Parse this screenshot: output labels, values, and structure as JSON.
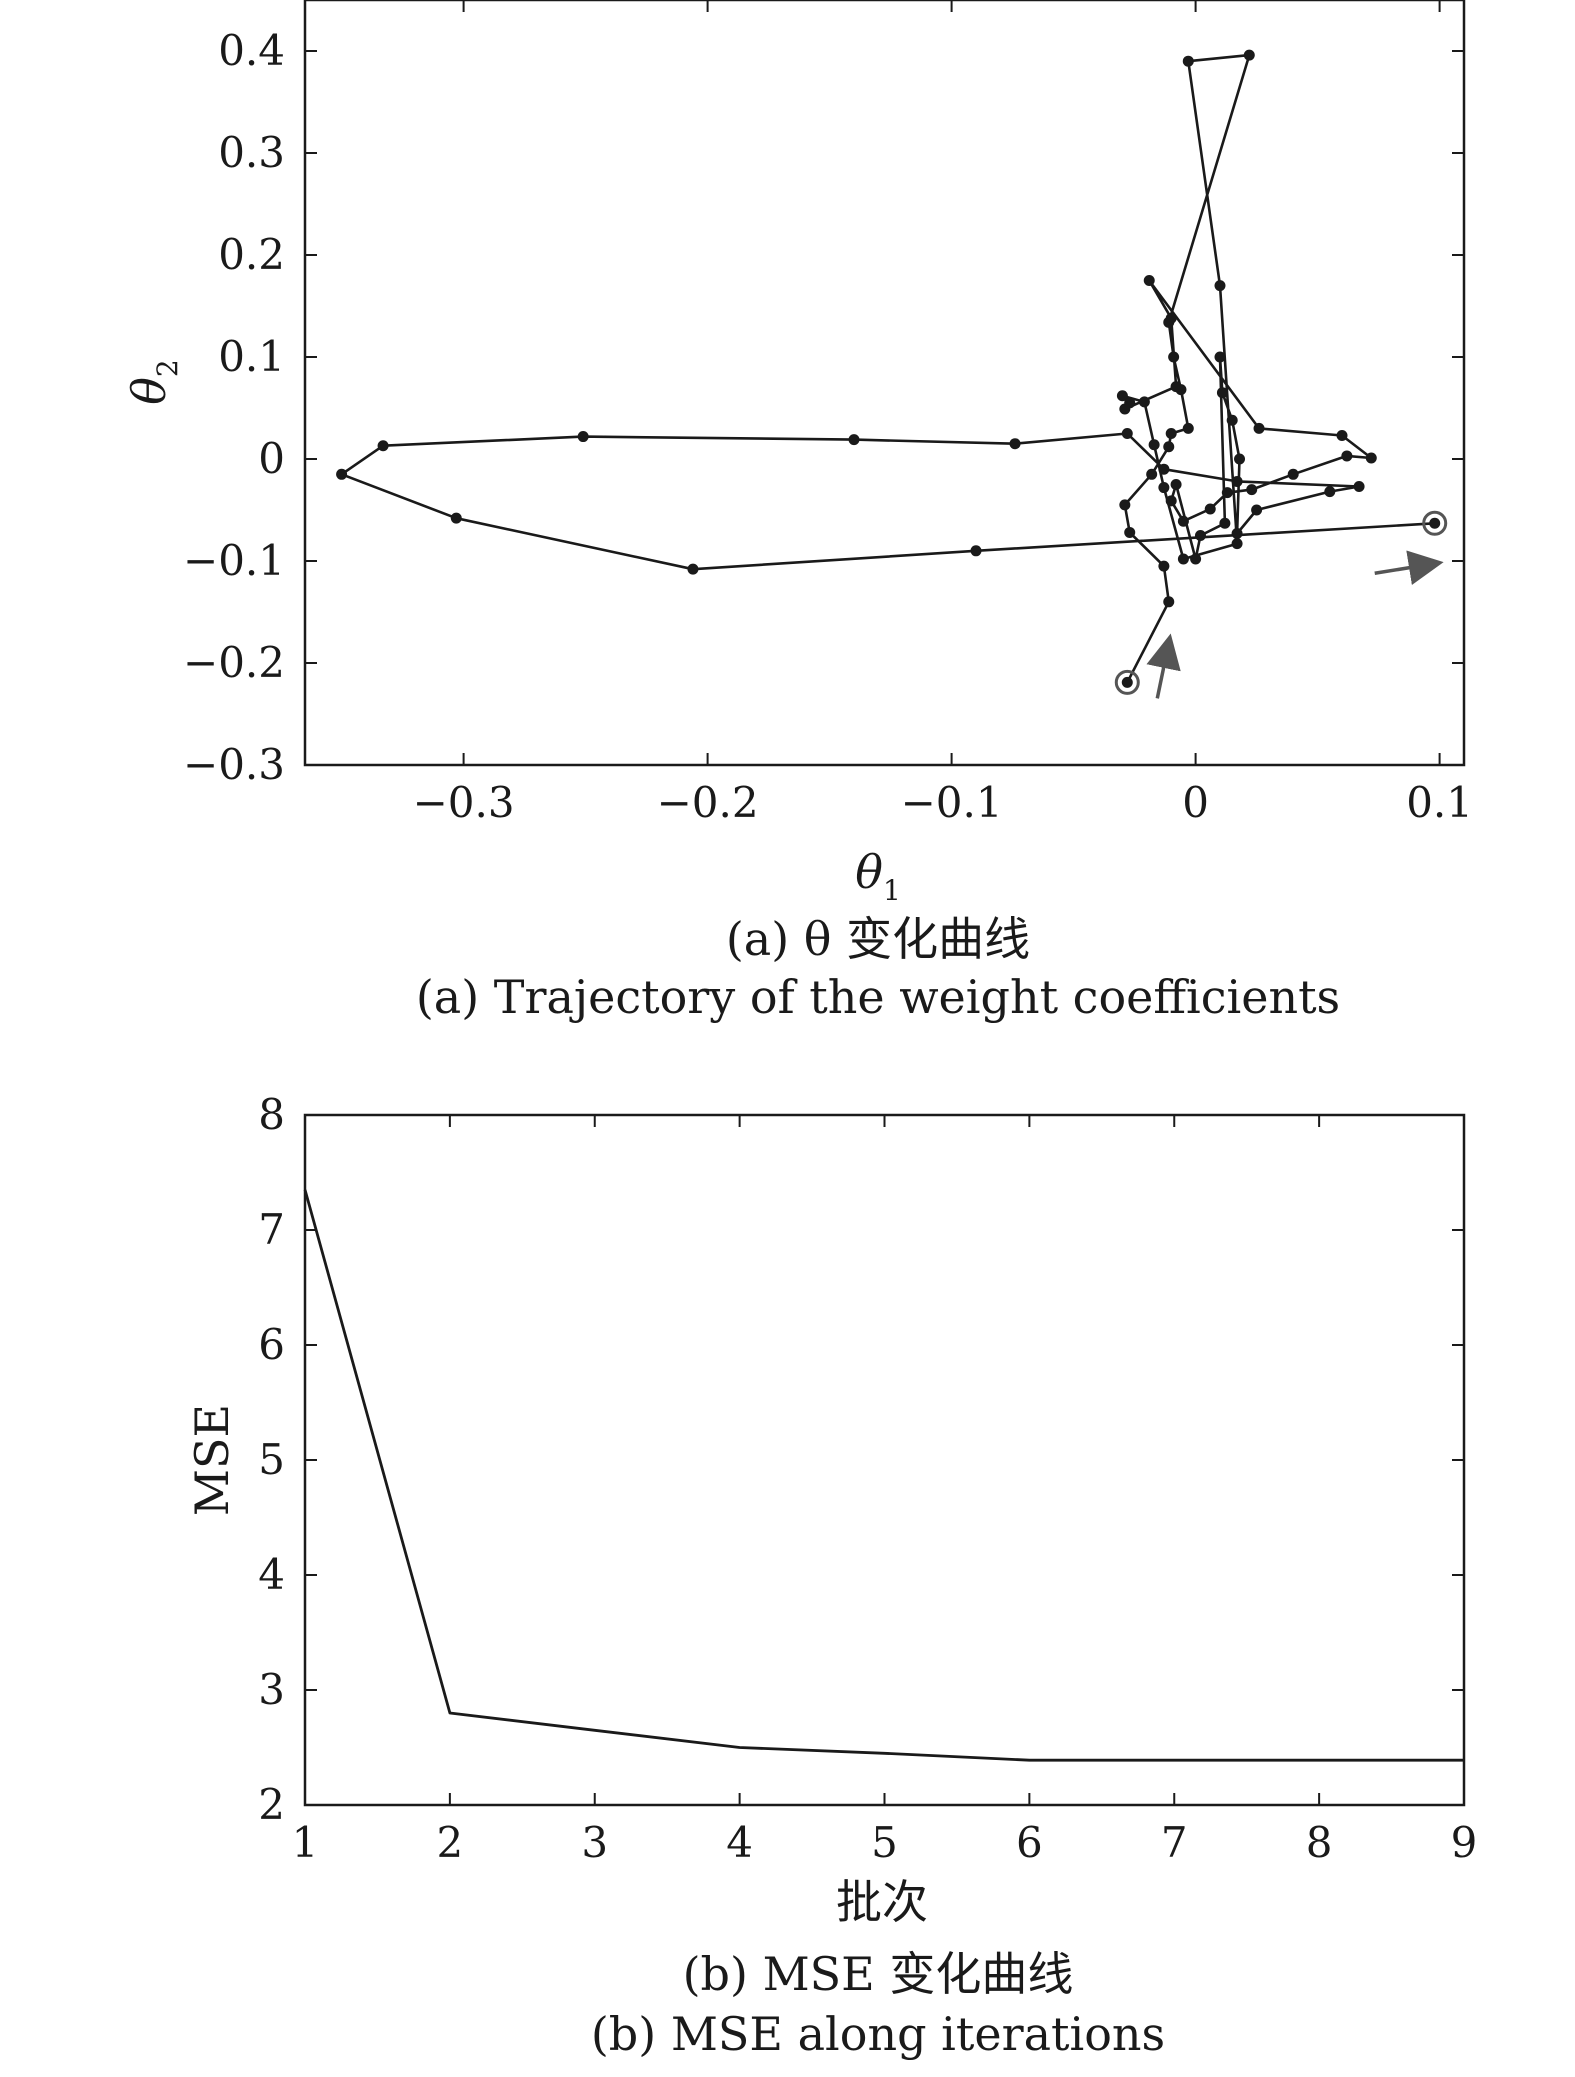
{
  "chart_data": [
    {
      "type": "line",
      "caption_zh": "(a) θ 变化曲线",
      "caption_en": "(a) Trajectory of the weight coefficients",
      "xlabel": "θ",
      "xlabel_sub": "1",
      "ylabel": "θ",
      "ylabel_sub": "2",
      "xlim": [
        -0.365,
        0.11
      ],
      "ylim": [
        -0.3,
        0.45
      ],
      "xticks": [
        -0.3,
        -0.2,
        -0.1,
        0,
        0.1
      ],
      "xtick_labels": [
        "−0.3",
        "−0.2",
        "−0.1",
        "0",
        "0.1"
      ],
      "yticks": [
        0.4,
        0.3,
        0.2,
        0.1,
        0,
        -0.1,
        -0.2,
        -0.3
      ],
      "ytick_labels": [
        "0.4",
        "0.3",
        "0.2",
        "0.1",
        "0",
        "−0.1",
        "−0.2",
        "−0.3"
      ],
      "grid": false,
      "series": [
        {
          "x": [
            -0.028,
            -0.011,
            -0.013,
            -0.027,
            -0.029,
            -0.018,
            -0.011,
            -0.01,
            -0.003,
            -0.006,
            -0.009,
            -0.011,
            0.022,
            -0.003,
            0.01,
            0.017,
            -0.005,
            -0.013,
            -0.017,
            -0.021,
            -0.03,
            -0.027,
            -0.029,
            -0.008,
            -0.01,
            -0.019,
            0.026,
            0.06,
            0.072,
            0.062,
            0.04,
            0.023,
            0.013,
            0.006,
            -0.005,
            -0.01,
            -0.008,
            0.0,
            0.002,
            0.012,
            0.01,
            0.011,
            0.015,
            0.018,
            0.017,
            0.025,
            0.055,
            0.067,
            0.017,
            -0.013,
            -0.028,
            -0.074,
            -0.14,
            -0.251,
            -0.333,
            -0.35,
            -0.303,
            -0.206,
            -0.09,
            0.098
          ],
          "y": [
            -0.219,
            -0.14,
            -0.105,
            -0.072,
            -0.045,
            -0.015,
            0.012,
            0.025,
            0.03,
            0.068,
            0.1,
            0.134,
            0.396,
            0.39,
            0.17,
            -0.083,
            -0.098,
            -0.028,
            0.014,
            0.056,
            0.062,
            0.055,
            0.049,
            0.071,
            0.138,
            0.175,
            0.03,
            0.023,
            0.001,
            0.003,
            -0.015,
            -0.03,
            -0.033,
            -0.049,
            -0.061,
            -0.041,
            -0.025,
            -0.098,
            -0.075,
            -0.063,
            0.1,
            0.065,
            0.038,
            0.0,
            -0.073,
            -0.05,
            -0.032,
            -0.027,
            -0.022,
            -0.01,
            0.025,
            0.015,
            0.019,
            0.022,
            0.013,
            -0.015,
            -0.058,
            -0.108,
            -0.09,
            -0.063
          ],
          "start": [
            -0.028,
            -0.219
          ],
          "end": [
            0.098,
            -0.063
          ]
        }
      ]
    },
    {
      "type": "line",
      "caption_zh": "(b) MSE 变化曲线",
      "caption_en": "(b) MSE along iterations",
      "xlabel": "批次",
      "ylabel": "MSE",
      "xlim": [
        1,
        9
      ],
      "ylim": [
        2,
        8
      ],
      "xticks": [
        1,
        2,
        3,
        4,
        5,
        6,
        7,
        8,
        9
      ],
      "yticks": [
        8,
        7,
        6,
        5,
        4,
        3,
        2
      ],
      "grid": false,
      "series": [
        {
          "x": [
            1,
            2,
            3,
            4,
            5,
            6,
            7,
            8,
            9
          ],
          "y": [
            7.35,
            2.8,
            2.65,
            2.5,
            2.45,
            2.39,
            2.39,
            2.39,
            2.39
          ]
        }
      ]
    }
  ],
  "colors": {
    "ink": "#1a1a1a",
    "marker_ring": "#555555",
    "arrow": "#555555"
  }
}
